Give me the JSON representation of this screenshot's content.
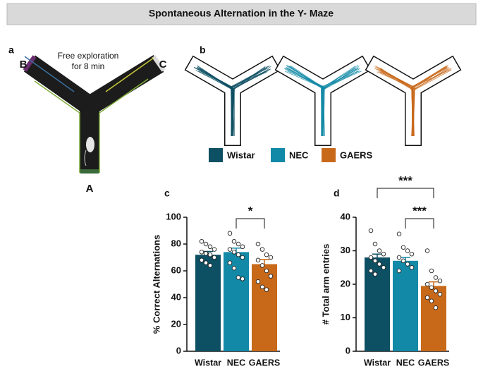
{
  "title": "Spontaneous Alternation in the Y- Maze",
  "panel_a": {
    "panel": "a",
    "text_lines": [
      "Free exploration",
      "for 8 min"
    ],
    "arms": [
      "A",
      "B",
      "C"
    ]
  },
  "panel_b": {
    "panel": "b"
  },
  "legend": [
    {
      "label": "Wistar",
      "color": "#0d4f63"
    },
    {
      "label": "NEC",
      "color": "#1289a6"
    },
    {
      "label": "GAERS",
      "color": "#c8691a"
    }
  ],
  "chart_data": [
    {
      "type": "bar",
      "panel": "c",
      "ylabel": "% Correct Alternations",
      "categories": [
        "Wistar",
        "NEC",
        "GAERS"
      ],
      "values": [
        72,
        74,
        65
      ],
      "errors": [
        2.5,
        3,
        3.5
      ],
      "colors": [
        "#0d4f63",
        "#1289a6",
        "#c8691a"
      ],
      "points": [
        [
          82,
          80,
          78,
          76,
          74,
          73,
          72,
          70,
          68,
          66,
          64
        ],
        [
          88,
          82,
          80,
          78,
          76,
          74,
          72,
          70,
          66,
          62,
          55,
          54
        ],
        [
          80,
          76,
          72,
          70,
          68,
          64,
          60,
          56,
          52,
          48,
          46
        ]
      ],
      "ylim": [
        0,
        100
      ],
      "yticks": [
        0,
        20,
        40,
        60,
        80,
        100
      ],
      "annotations": [
        {
          "label": "*",
          "between": [
            "NEC",
            "GAERS"
          ]
        }
      ]
    },
    {
      "type": "bar",
      "panel": "d",
      "ylabel": "# Total arm entries",
      "categories": [
        "Wistar",
        "NEC",
        "GAERS"
      ],
      "values": [
        28,
        27,
        19.5
      ],
      "errors": [
        1,
        1,
        1.2
      ],
      "colors": [
        "#0d4f63",
        "#1289a6",
        "#c8691a"
      ],
      "points": [
        [
          36,
          32,
          30,
          29,
          28,
          27,
          26,
          25,
          24,
          23
        ],
        [
          35,
          31,
          30,
          29,
          28,
          27,
          26,
          25,
          24
        ],
        [
          30,
          24,
          22,
          21,
          20,
          19,
          18,
          17,
          16,
          15,
          13
        ]
      ],
      "ylim": [
        0,
        40
      ],
      "yticks": [
        0,
        10,
        20,
        30,
        40
      ],
      "annotations": [
        {
          "label": "***",
          "between": [
            "NEC",
            "GAERS"
          ]
        },
        {
          "label": "***",
          "between": [
            "Wistar",
            "GAERS"
          ]
        }
      ]
    }
  ]
}
